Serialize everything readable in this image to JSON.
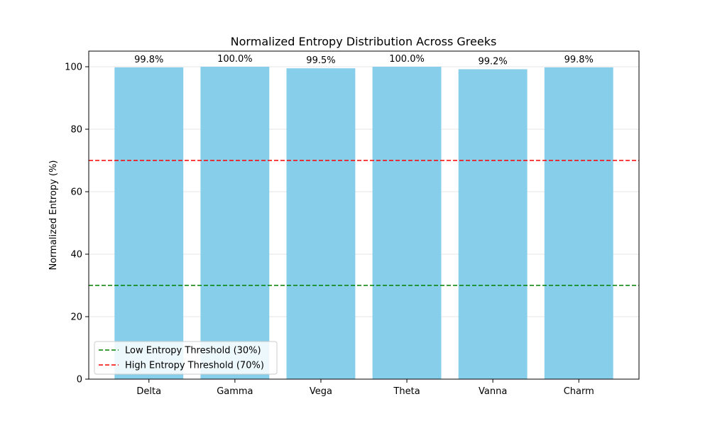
{
  "chart_data": {
    "type": "bar",
    "title": "Normalized Entropy Distribution Across Greeks",
    "xlabel": "",
    "ylabel": "Normalized Entropy (%)",
    "categories": [
      "Delta",
      "Gamma",
      "Vega",
      "Theta",
      "Vanna",
      "Charm"
    ],
    "values": [
      99.8,
      100.0,
      99.5,
      100.0,
      99.2,
      99.8
    ],
    "value_labels": [
      "99.8%",
      "100.0%",
      "99.5%",
      "100.0%",
      "99.2%",
      "99.8%"
    ],
    "ylim": [
      0,
      105
    ],
    "yticks": [
      0,
      20,
      40,
      60,
      80,
      100
    ],
    "grid": "horizontal",
    "legend_position": "lower-left",
    "thresholds": [
      {
        "label": "Low Entropy Threshold (30%)",
        "value": 30,
        "color": "#008000",
        "style": "dashed"
      },
      {
        "label": "High Entropy Threshold (70%)",
        "value": 70,
        "color": "#ff0000",
        "style": "dashed"
      }
    ],
    "bar_color": "#87ceeb"
  }
}
